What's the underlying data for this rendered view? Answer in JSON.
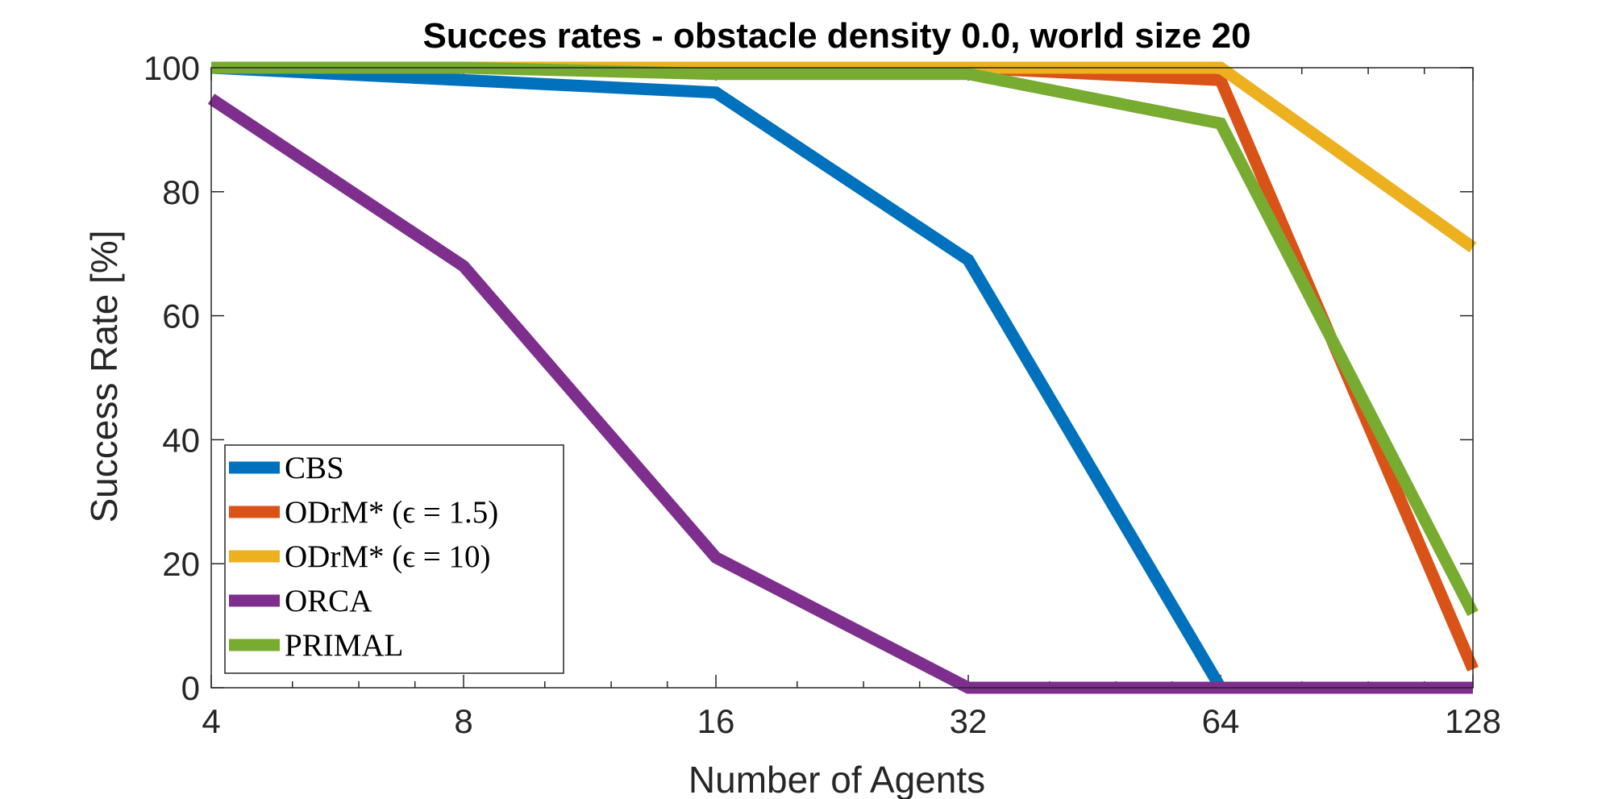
{
  "chart_data": {
    "type": "line",
    "title": "Succes rates - obstacle density 0.0, world size 20",
    "xlabel": "Number of Agents",
    "ylabel": "Success Rate [%]",
    "x_scale": "log2",
    "x": [
      4,
      8,
      16,
      32,
      64,
      128
    ],
    "x_tick_labels": [
      "4",
      "8",
      "16",
      "32",
      "64",
      "128"
    ],
    "xlim": [
      4,
      128
    ],
    "ylim": [
      0,
      100
    ],
    "y_ticks": [
      0,
      20,
      40,
      60,
      80,
      100
    ],
    "y_tick_labels": [
      "0",
      "20",
      "40",
      "60",
      "80",
      "100"
    ],
    "grid": false,
    "legend_position": "bottom-left",
    "series": [
      {
        "name": "CBS",
        "color": "#0072BD",
        "values": [
          100,
          98,
          96,
          69,
          0,
          null
        ]
      },
      {
        "name": "ODrM* (ϵ = 1.5)",
        "color": "#D95319",
        "values": [
          100,
          100,
          100,
          100,
          98,
          3
        ]
      },
      {
        "name": "ODrM* (ϵ = 10)",
        "color": "#EDB120",
        "values": [
          100,
          100,
          100,
          100,
          100,
          71
        ]
      },
      {
        "name": "ORCA",
        "color": "#7E2F8E",
        "values": [
          95,
          68,
          21,
          0,
          0,
          0
        ]
      },
      {
        "name": "PRIMAL",
        "color": "#77AC30",
        "values": [
          100,
          100,
          99,
          99,
          91,
          12
        ]
      }
    ]
  }
}
